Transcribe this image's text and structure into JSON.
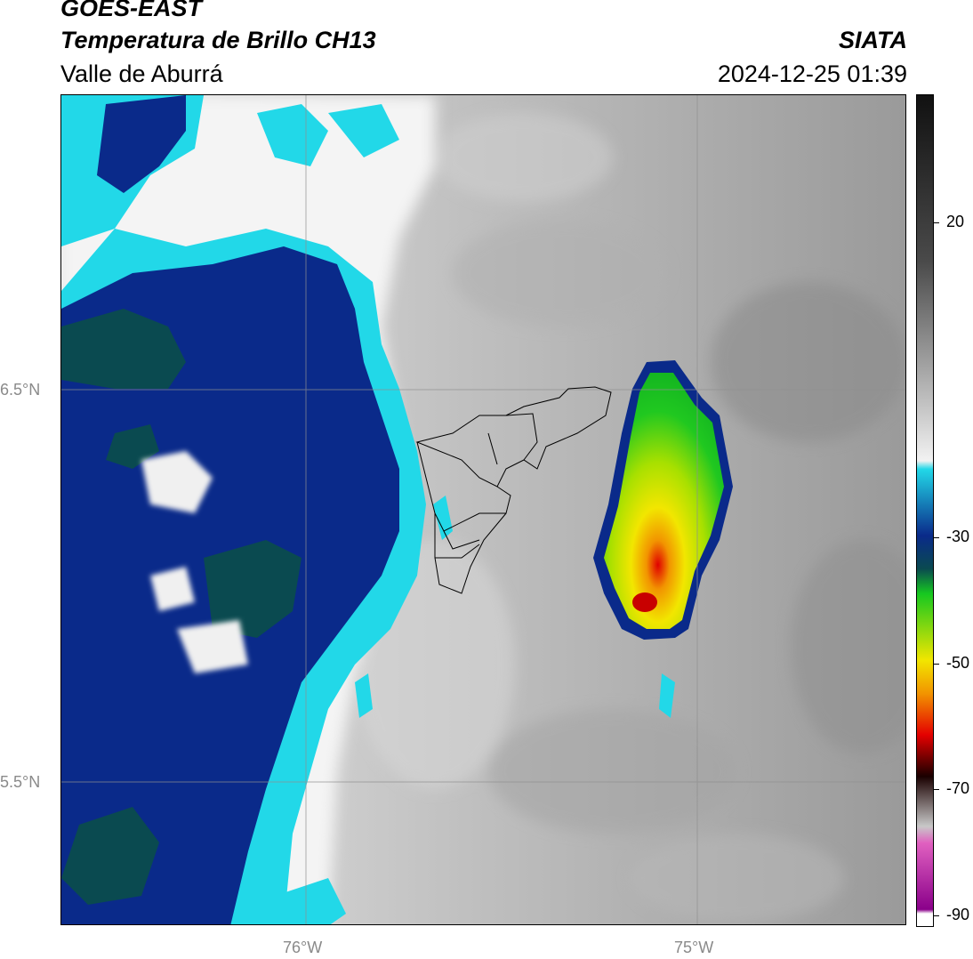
{
  "header": {
    "satellite": "GOES-EAST",
    "product": "Temperatura de Brillo CH13",
    "region": "Valle de Aburrá",
    "brand": "SIATA",
    "datetime": "2024-12-25 01:39"
  },
  "map": {
    "lat_labels": [
      "6.5°N",
      "5.5°N"
    ],
    "lon_labels": [
      "76°W",
      "75°W"
    ],
    "extent": {
      "lon_min": -76.62,
      "lon_max": -74.46,
      "lat_min": 5.13,
      "lat_max": 7.25
    }
  },
  "colorbar": {
    "labels": [
      "20",
      "-30",
      "-50",
      "-70",
      "-90"
    ],
    "range": [
      -92,
      31
    ],
    "colors": {
      "warm_gray_high": "#111111",
      "warm_gray_low": "#f2f2f2",
      "cyan": "#22d8e8",
      "navy": "#0a2a8a",
      "teal": "#0a4a50",
      "green": "#16c820",
      "yellow": "#f2e600",
      "orange": "#f29400",
      "red": "#e40000",
      "black": "#1a0000",
      "pink": "#e060c0",
      "purple": "#8a008a"
    }
  }
}
